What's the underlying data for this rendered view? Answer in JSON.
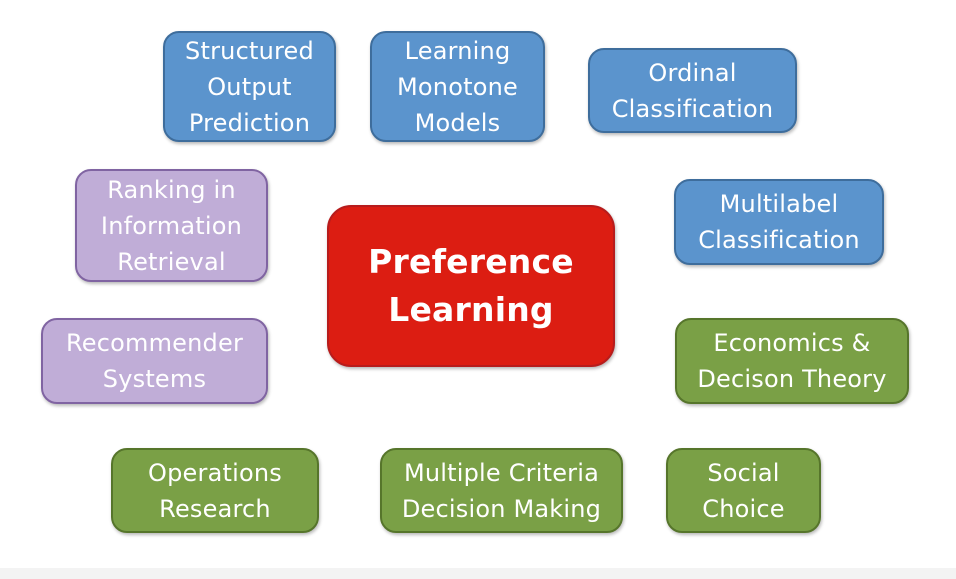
{
  "center": {
    "label": "Preference\nLearning"
  },
  "nodes": [
    {
      "id": "structured-output",
      "label": "Structured\nOutput\nPrediction"
    },
    {
      "id": "learning-monotone",
      "label": "Learning\nMonotone\nModels"
    },
    {
      "id": "ordinal-classification",
      "label": "Ordinal\nClassification"
    },
    {
      "id": "ranking-ir",
      "label": "Ranking in\nInformation\nRetrieval"
    },
    {
      "id": "multilabel-classification",
      "label": "Multilabel\nClassification"
    },
    {
      "id": "recommender-systems",
      "label": "Recommender\nSystems"
    },
    {
      "id": "economics-decision",
      "label": "Economics &\nDecison Theory"
    },
    {
      "id": "operations-research",
      "label": "Operations\nResearch"
    },
    {
      "id": "mcdm",
      "label": "Multiple Criteria\nDecision Making"
    },
    {
      "id": "social-choice",
      "label": "Social\nChoice"
    }
  ],
  "colors": {
    "blue": "#5b94cd",
    "purple": "#c0add7",
    "green": "#7aa046",
    "red": "#dc1d12"
  }
}
